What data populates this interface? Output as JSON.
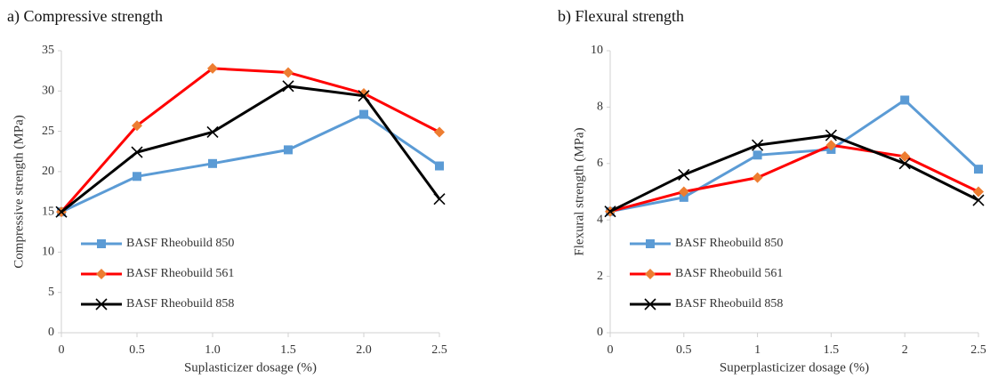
{
  "chart_data": [
    {
      "type": "line",
      "title": "a) Compressive strength",
      "x_label": "Suplasticizer dosage (%)",
      "y_label": "Compressive strength (MPa)",
      "x": [
        0,
        0.5,
        1,
        1.5,
        2,
        2.5
      ],
      "xlim": [
        0,
        2.5
      ],
      "xticks": [
        0,
        0.5,
        {
          "value": 1,
          "label": "1.0"
        },
        1.5,
        {
          "value": 2,
          "label": "2.0"
        },
        2.5
      ],
      "ylim": [
        0,
        35
      ],
      "yticks": [
        0,
        5,
        10,
        15,
        20,
        25,
        30,
        35
      ],
      "grid": false,
      "legend": "lower left",
      "series": [
        {
          "name": "BASF Rheobuild 850",
          "color": "#5b9bd5",
          "marker_color": "#5b9bd5",
          "marker": "square",
          "values": [
            15,
            19.4,
            21,
            22.7,
            27.1,
            20.7
          ]
        },
        {
          "name": "BASF Rheobuild 561",
          "color": "#ff0000",
          "marker_color": "#ed7d31",
          "marker": "diamond",
          "values": [
            15,
            25.7,
            32.8,
            32.3,
            29.7,
            24.9
          ]
        },
        {
          "name": "BASF Rheobuild 858",
          "color": "#000000",
          "marker_color": "#000000",
          "marker": "x",
          "values": [
            15,
            22.4,
            24.9,
            30.6,
            29.4,
            16.6
          ]
        }
      ]
    },
    {
      "type": "line",
      "title": "b) Flexural strength",
      "x_label": "Superplasticizer dosage (%)",
      "y_label": "Flexural strength (MPa)",
      "x": [
        0,
        0.5,
        1,
        1.5,
        2,
        2.5
      ],
      "xlim": [
        0,
        2.5
      ],
      "xticks": [
        0,
        0.5,
        1,
        1.5,
        2,
        2.5
      ],
      "ylim": [
        0,
        10
      ],
      "yticks": [
        0,
        2,
        4,
        6,
        8,
        10
      ],
      "grid": false,
      "legend": "lower left",
      "series": [
        {
          "name": "BASF Rheobuild 850",
          "color": "#5b9bd5",
          "marker_color": "#5b9bd5",
          "marker": "square",
          "values": [
            4.3,
            4.8,
            6.3,
            6.5,
            8.25,
            5.8
          ]
        },
        {
          "name": "BASF Rheobuild 561",
          "color": "#ff0000",
          "marker_color": "#ed7d31",
          "marker": "diamond",
          "values": [
            4.3,
            5.0,
            5.5,
            6.65,
            6.25,
            5.0
          ]
        },
        {
          "name": "BASF Rheobuild 858",
          "color": "#000000",
          "marker_color": "#000000",
          "marker": "x",
          "values": [
            4.3,
            5.6,
            6.65,
            7.0,
            6.0,
            4.7
          ]
        }
      ]
    }
  ]
}
